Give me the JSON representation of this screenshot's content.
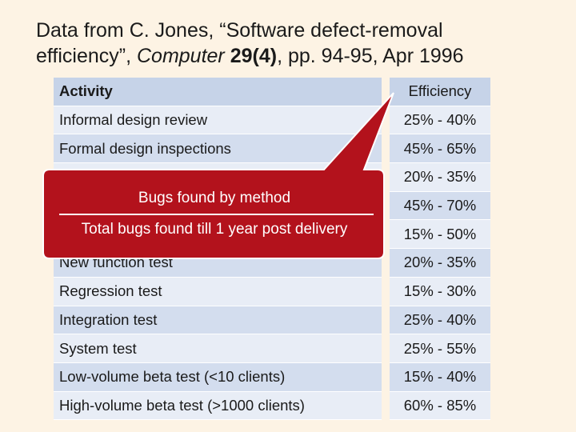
{
  "title": {
    "line1": "Data from C. Jones, “Software defect-removal",
    "line2": [
      "efficiency”, ",
      "Computer",
      " ",
      "29(4)",
      ", pp. 94-95, Apr 1996"
    ]
  },
  "table": {
    "header": [
      "Activity",
      "Efficiency"
    ],
    "rows": [
      [
        "Informal design review",
        "25% - 40%"
      ],
      [
        "Formal design inspections",
        "45% - 65%"
      ],
      [
        null,
        "20% - 35%"
      ],
      [
        null,
        "45% - 70%"
      ],
      [
        null,
        "15% - 50%"
      ],
      [
        "New function test",
        "20% - 35%"
      ],
      [
        "Regression test",
        "15% - 30%"
      ],
      [
        "Integration test",
        "25% - 40%"
      ],
      [
        "System test",
        "25% - 55%"
      ],
      [
        "Low-volume beta test (<10 clients)",
        "15% - 40%"
      ],
      [
        "High-volume beta test (>1000 clients)",
        "60% - 85%"
      ]
    ]
  },
  "callout": {
    "numerator": "Bugs found by method",
    "denominator": "Total bugs found till 1 year post delivery"
  }
}
